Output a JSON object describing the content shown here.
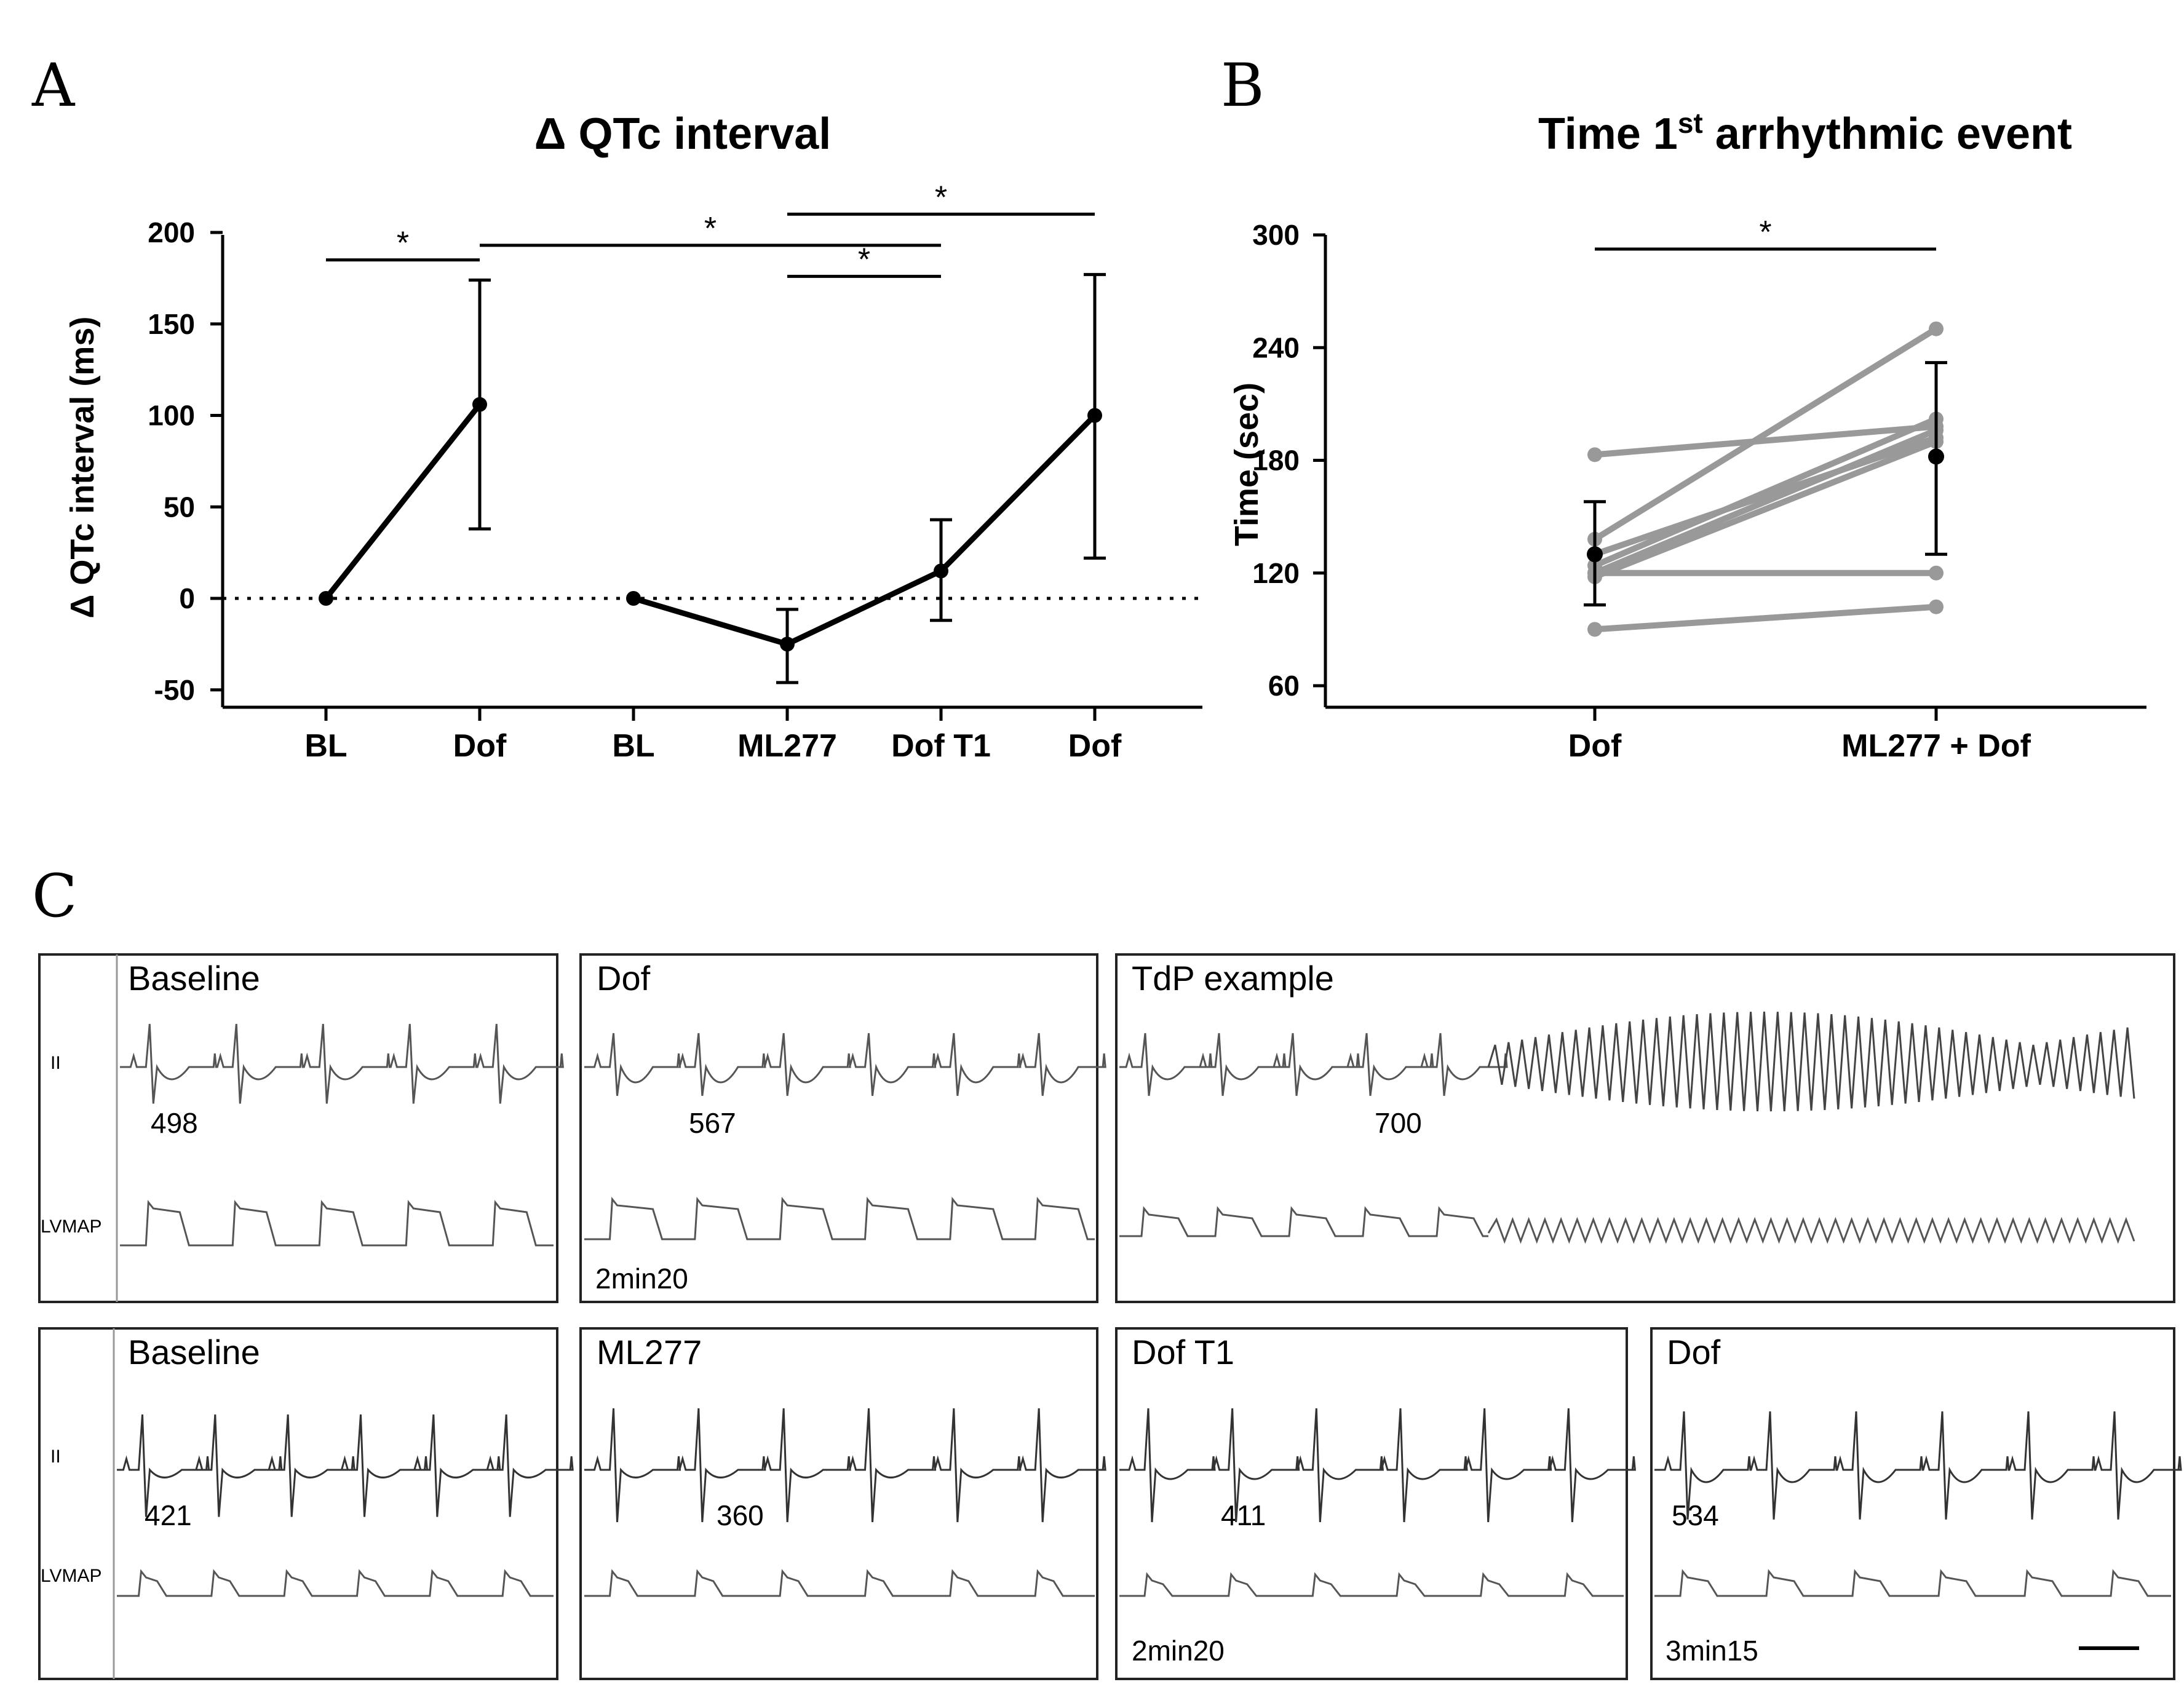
{
  "panels": {
    "A": {
      "letter": "A"
    },
    "B": {
      "letter": "B"
    },
    "C": {
      "letter": "C"
    }
  },
  "chart_data": [
    {
      "id": "A",
      "type": "line",
      "title": "Δ QTc interval",
      "ylabel": "Δ QTc interval (ms)",
      "xlabel": "",
      "ylim": [
        -50,
        200
      ],
      "yticks": [
        -50,
        0,
        50,
        100,
        150,
        200
      ],
      "categories": [
        "BL",
        "Dof",
        "BL",
        "ML277",
        "Dof T1",
        "Dof"
      ],
      "series": [
        {
          "points": [
            {
              "x": 0,
              "y": 0
            },
            {
              "x": 1,
              "y": 106,
              "err_low": 38,
              "err_high": 174
            }
          ]
        },
        {
          "points": [
            {
              "x": 2,
              "y": 0
            },
            {
              "x": 3,
              "y": -25,
              "err_low": -46,
              "err_high": -6
            },
            {
              "x": 4,
              "y": 15,
              "err_low": -12,
              "err_high": 43
            },
            {
              "x": 5,
              "y": 100,
              "err_low": 22,
              "err_high": 177
            }
          ]
        }
      ],
      "reference_line": {
        "y": 0,
        "style": "dotted"
      },
      "significance": [
        {
          "from": 0,
          "to": 1,
          "label": "*",
          "y": 185
        },
        {
          "from": 1,
          "to": 4,
          "label": "*",
          "y": 193
        },
        {
          "from": 3,
          "to": 4,
          "label": "*",
          "y": 176
        },
        {
          "from": 3,
          "to": 5,
          "label": "*",
          "y": 210
        }
      ],
      "grid": false
    },
    {
      "id": "B",
      "type": "line",
      "title_main": "Time 1",
      "title_sup": "st",
      "title_rest": " arrhythmic event",
      "ylabel": "Time (sec)",
      "xlabel": "",
      "ylim": [
        60,
        300
      ],
      "yticks": [
        60,
        120,
        180,
        240,
        300
      ],
      "categories": [
        "Dof",
        "ML277 + Dof"
      ],
      "paired_series_color": "#999999",
      "paired_series": [
        [
          183,
          198
        ],
        [
          138,
          250
        ],
        [
          130,
          192
        ],
        [
          124,
          202
        ],
        [
          120,
          196
        ],
        [
          118,
          190
        ],
        [
          120,
          120
        ],
        [
          90,
          102
        ]
      ],
      "mean": [
        {
          "x": 0,
          "y": 130,
          "err_low": 103,
          "err_high": 158
        },
        {
          "x": 1,
          "y": 182,
          "err_low": 130,
          "err_high": 232
        }
      ],
      "significance": [
        {
          "from": 0,
          "to": 1,
          "label": "*"
        }
      ],
      "grid": false
    }
  ],
  "traces": {
    "ecg_label": "II",
    "lvmap_label": "LVMAP",
    "row1": [
      {
        "title": "Baseline",
        "value": "498",
        "time": ""
      },
      {
        "title": "Dof",
        "value": "567",
        "time": "2min20"
      },
      {
        "title": "TdP example",
        "value": "700",
        "time": ""
      }
    ],
    "row2": [
      {
        "title": "Baseline",
        "value": "421",
        "time": ""
      },
      {
        "title": "ML277",
        "value": "360",
        "time": ""
      },
      {
        "title": "Dof T1",
        "value": "411",
        "time": "2min20"
      },
      {
        "title": "Dof",
        "value": "534",
        "time": "3min15"
      }
    ]
  }
}
